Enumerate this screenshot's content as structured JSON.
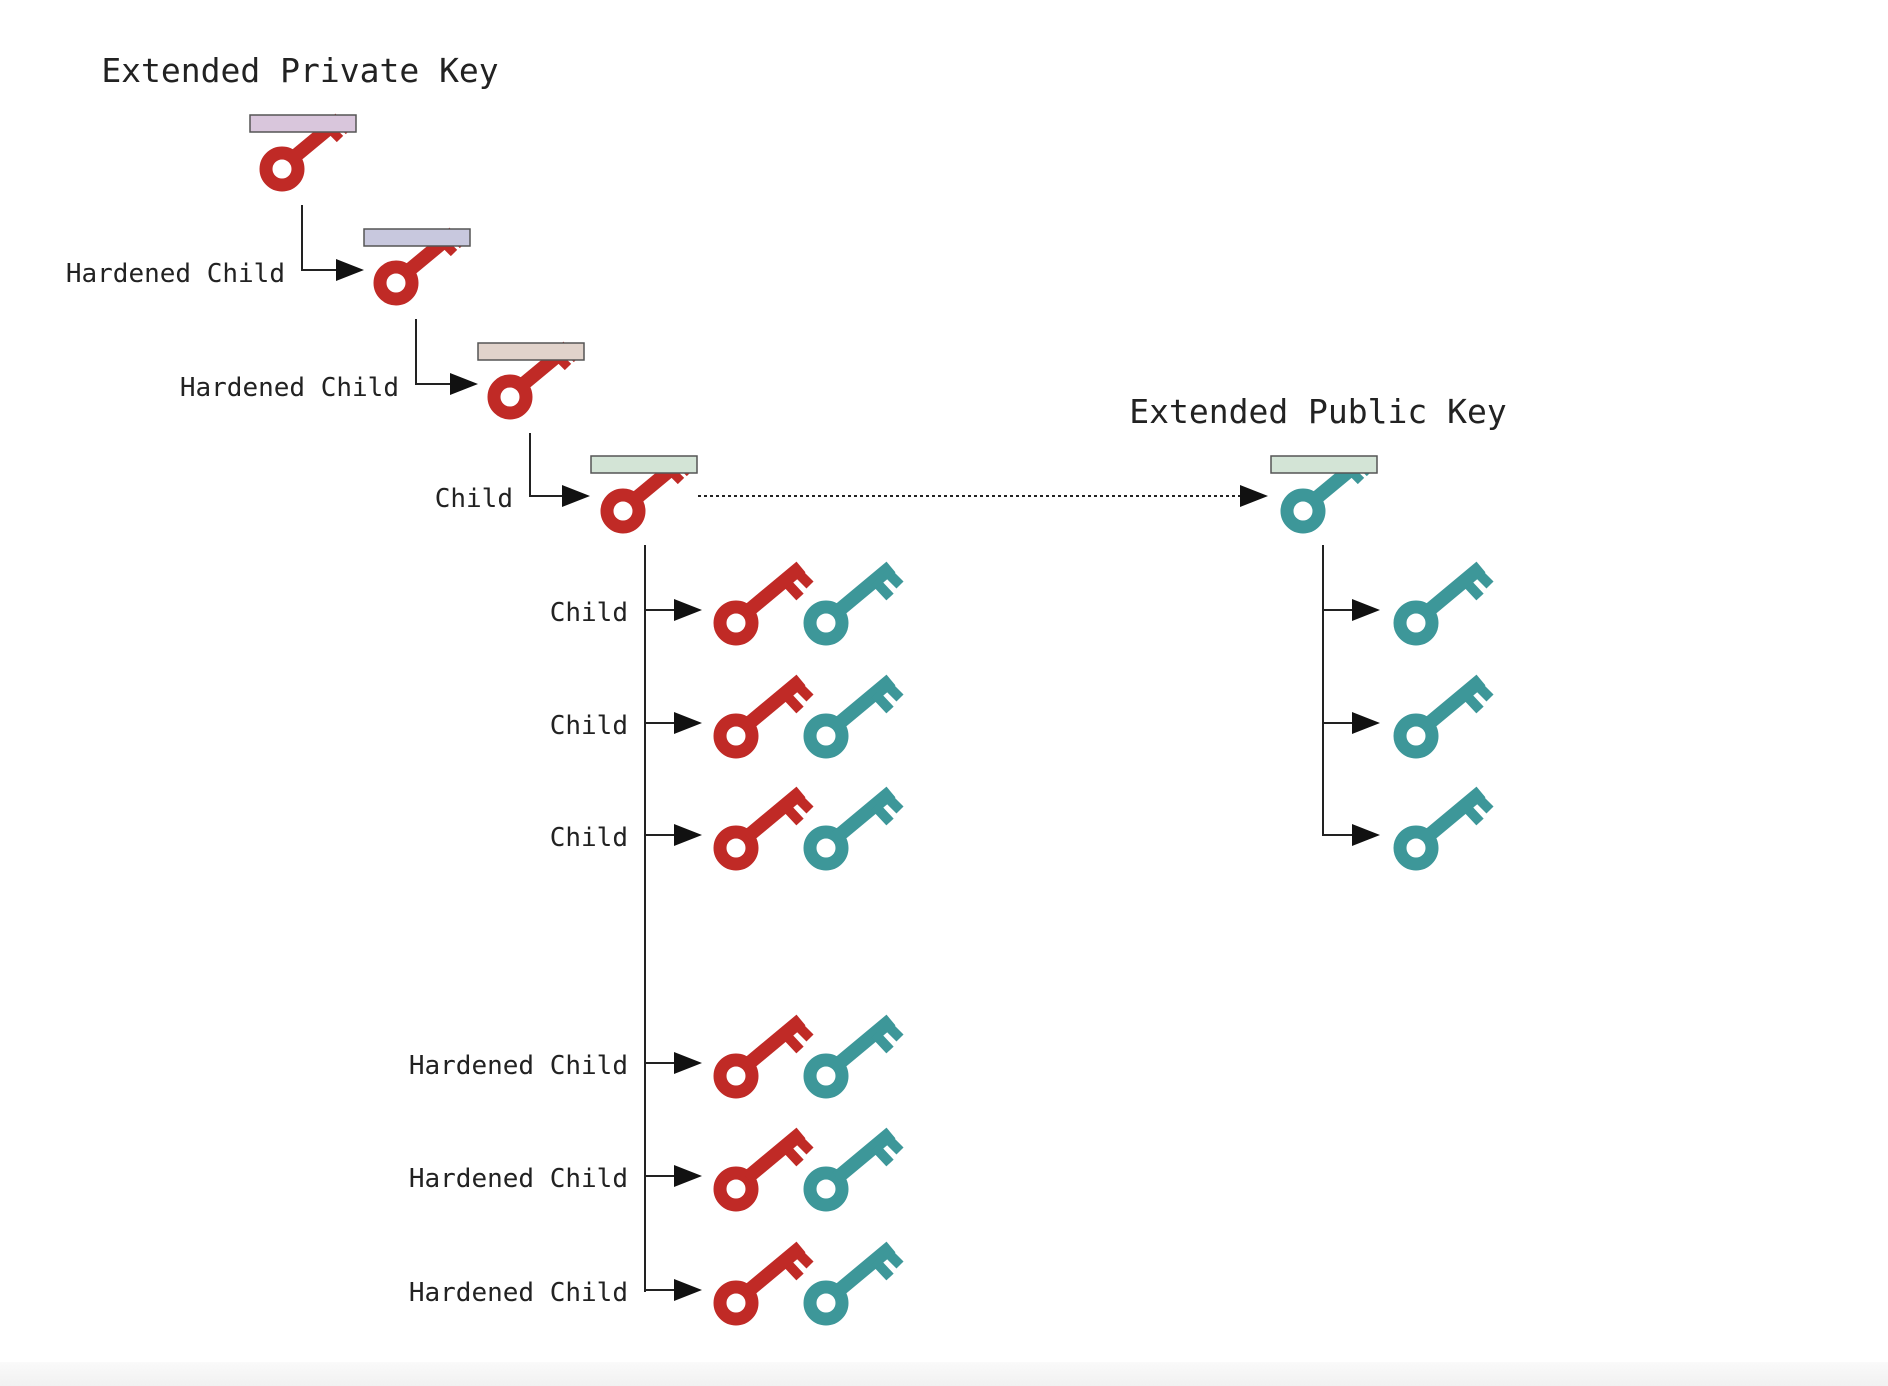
{
  "titles": {
    "private": "Extended Private Key",
    "public": "Extended Public Key"
  },
  "labels": {
    "chain_1": "Hardened Child",
    "chain_2": "Hardened Child",
    "chain_3": "Child",
    "branch_1": "Child",
    "branch_2": "Child",
    "branch_3": "Child",
    "branch_4": "Hardened Child",
    "branch_5": "Hardened Child",
    "branch_6": "Hardened Child"
  },
  "icons": {
    "private_key": "private-key-icon",
    "public_key": "public-key-icon"
  },
  "colors": {
    "private_key": "#c02a26",
    "public_key": "#3d9799",
    "chain_code_bars": [
      "#d9c6dc",
      "#c8c8de",
      "#e1d3cb",
      "#d3e4d6",
      "#d3e4d6"
    ],
    "lines": "#222222"
  }
}
